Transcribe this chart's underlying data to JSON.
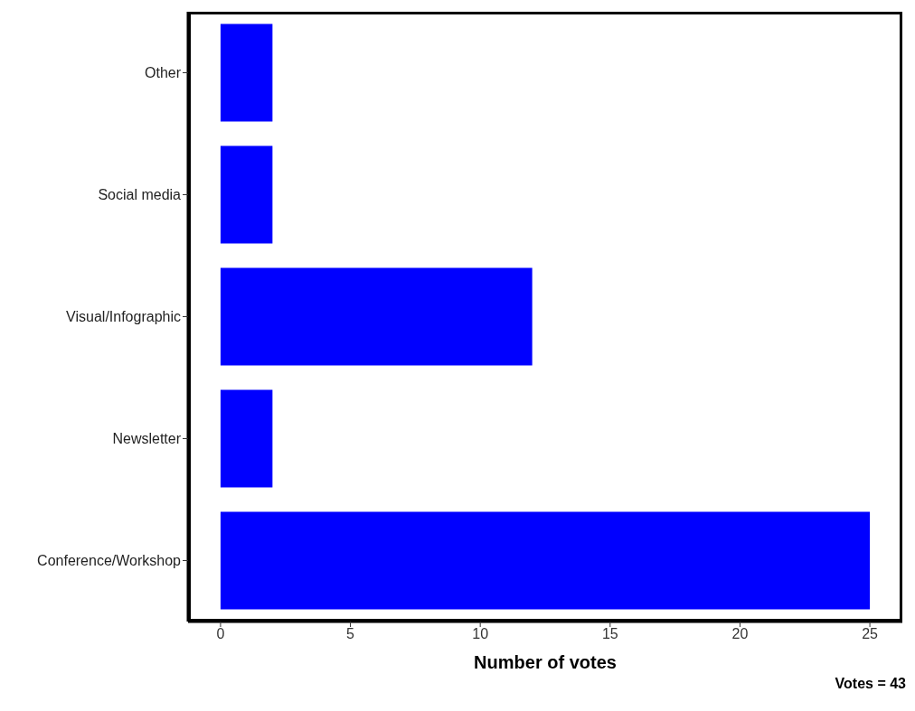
{
  "chart_data": {
    "type": "bar",
    "orientation": "horizontal",
    "xlabel": "Number of votes",
    "categories": [
      "Other",
      "Social media",
      "Visual/Infographic",
      "Newsletter",
      "Conference/Workshop"
    ],
    "values": [
      2,
      2,
      12,
      2,
      25
    ],
    "color": "#0000ff",
    "xlim": [
      -1.25,
      26.25
    ],
    "xticks": [
      0,
      5,
      10,
      15,
      20,
      25
    ],
    "grid": false,
    "annotations": [
      "Votes = 43"
    ]
  }
}
